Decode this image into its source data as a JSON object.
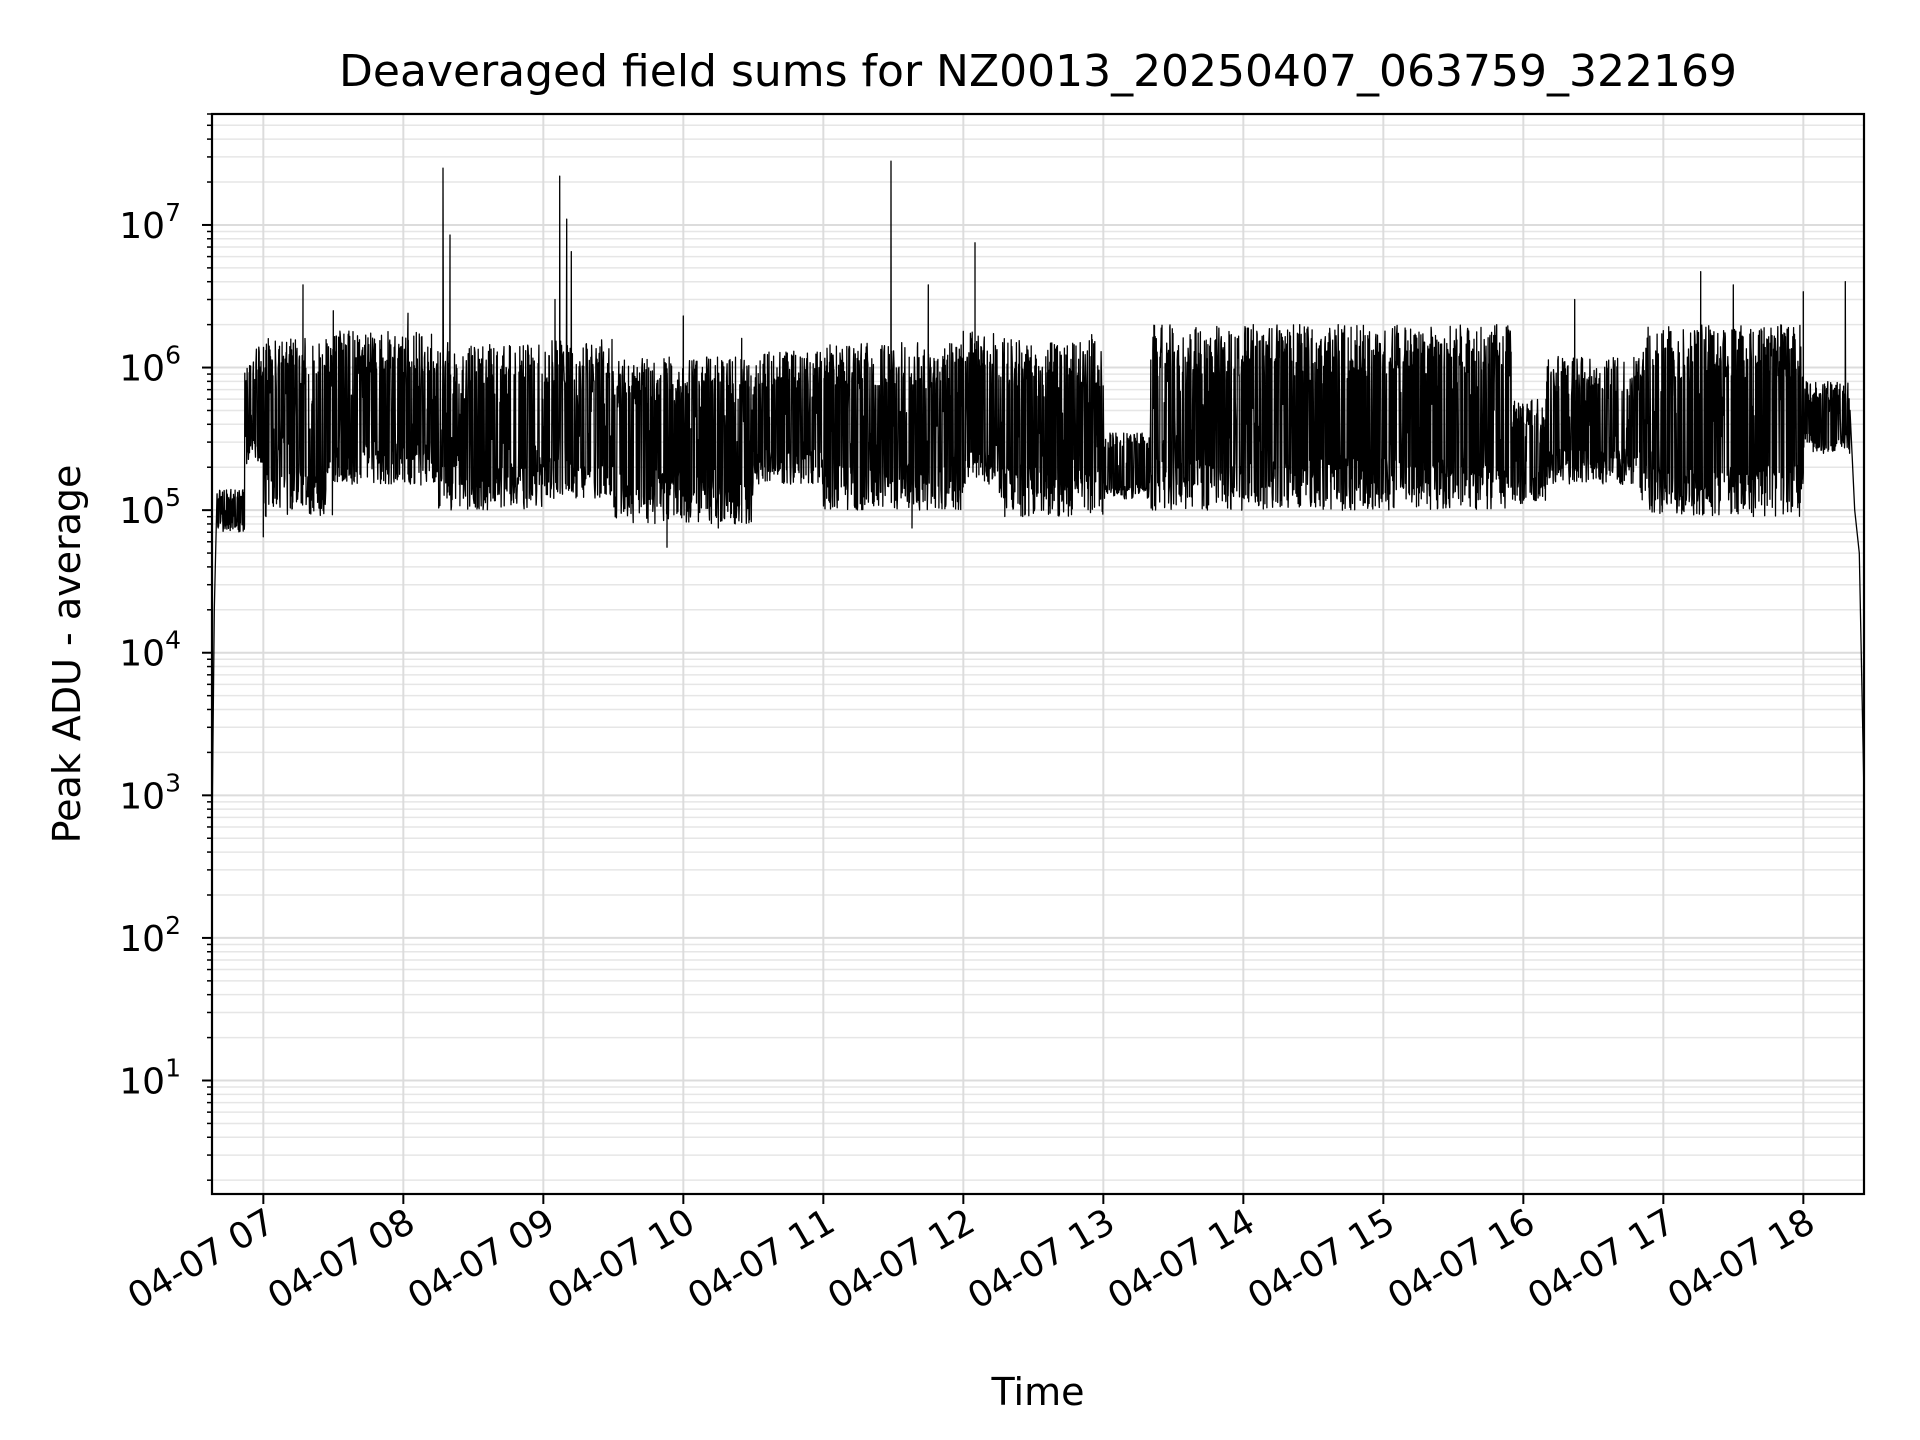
{
  "chart_data": {
    "type": "line",
    "title": "Deaveraged field sums for NZ0013_20250407_063759_322169",
    "xlabel": "Time",
    "ylabel": "Peak ADU - average",
    "yscale": "log",
    "grid": "on (major and minor)",
    "legend": "none",
    "xlim": [
      "2025-04-07 06:38",
      "2025-04-07 18:26"
    ],
    "ylim": [
      1.6,
      60000000
    ],
    "x_ticks": [
      {
        "label": "04-07 07",
        "hour": 7
      },
      {
        "label": "04-07 08",
        "hour": 8
      },
      {
        "label": "04-07 09",
        "hour": 9
      },
      {
        "label": "04-07 10",
        "hour": 10
      },
      {
        "label": "04-07 11",
        "hour": 11
      },
      {
        "label": "04-07 12",
        "hour": 12
      },
      {
        "label": "04-07 13",
        "hour": 13
      },
      {
        "label": "04-07 14",
        "hour": 14
      },
      {
        "label": "04-07 15",
        "hour": 15
      },
      {
        "label": "04-07 16",
        "hour": 16
      },
      {
        "label": "04-07 17",
        "hour": 17
      },
      {
        "label": "04-07 18",
        "hour": 18
      }
    ],
    "y_ticks": [
      {
        "base": "10",
        "exp": "1",
        "value": 10
      },
      {
        "base": "10",
        "exp": "2",
        "value": 100
      },
      {
        "base": "10",
        "exp": "3",
        "value": 1000
      },
      {
        "base": "10",
        "exp": "4",
        "value": 10000
      },
      {
        "base": "10",
        "exp": "5",
        "value": 100000
      },
      {
        "base": "10",
        "exp": "6",
        "value": 1000000
      },
      {
        "base": "10",
        "exp": "7",
        "value": 10000000
      }
    ],
    "series": [
      {
        "color": "#000000",
        "envelope_segments": [
          {
            "from": "06:40",
            "to": "06:52",
            "low": 70000,
            "high": 140000
          },
          {
            "from": "06:52",
            "to": "07:00",
            "low": 200000,
            "high": 1400000
          },
          {
            "from": "07:00",
            "to": "07:30",
            "low": 90000,
            "high": 1600000
          },
          {
            "from": "07:30",
            "to": "08:15",
            "low": 150000,
            "high": 1800000
          },
          {
            "from": "08:15",
            "to": "09:00",
            "low": 100000,
            "high": 1500000
          },
          {
            "from": "09:00",
            "to": "09:30",
            "low": 120000,
            "high": 1600000
          },
          {
            "from": "09:30",
            "to": "10:30",
            "low": 80000,
            "high": 1200000
          },
          {
            "from": "10:30",
            "to": "11:00",
            "low": 150000,
            "high": 1300000
          },
          {
            "from": "11:00",
            "to": "12:00",
            "low": 100000,
            "high": 1500000
          },
          {
            "from": "12:00",
            "to": "12:15",
            "low": 150000,
            "high": 1800000
          },
          {
            "from": "12:15",
            "to": "13:00",
            "low": 90000,
            "high": 1600000
          },
          {
            "from": "13:00",
            "to": "13:20",
            "low": 120000,
            "high": 350000
          },
          {
            "from": "13:20",
            "to": "15:55",
            "low": 100000,
            "high": 2000000
          },
          {
            "from": "15:55",
            "to": "16:10",
            "low": 110000,
            "high": 600000
          },
          {
            "from": "16:10",
            "to": "16:50",
            "low": 150000,
            "high": 1200000
          },
          {
            "from": "16:50",
            "to": "18:00",
            "low": 90000,
            "high": 2000000
          },
          {
            "from": "18:00",
            "to": "18:20",
            "low": 250000,
            "high": 800000
          }
        ],
        "edge_points": [
          {
            "time": "06:38",
            "value": 500
          },
          {
            "time": "06:39",
            "value": 20000
          },
          {
            "time": "06:41",
            "value": 120000
          },
          {
            "time": "18:22",
            "value": 100000
          },
          {
            "time": "18:24",
            "value": 50000
          },
          {
            "time": "18:26",
            "value": 1000
          }
        ],
        "spikes": [
          {
            "time": "07:17",
            "value": 3800000
          },
          {
            "time": "07:30",
            "value": 2500000
          },
          {
            "time": "08:02",
            "value": 2400000
          },
          {
            "time": "08:17",
            "value": 25000000
          },
          {
            "time": "08:20",
            "value": 8500000
          },
          {
            "time": "09:05",
            "value": 3000000
          },
          {
            "time": "09:07",
            "value": 22000000
          },
          {
            "time": "09:10",
            "value": 11000000
          },
          {
            "time": "09:12",
            "value": 6500000
          },
          {
            "time": "10:00",
            "value": 2300000
          },
          {
            "time": "10:25",
            "value": 1600000
          },
          {
            "time": "11:29",
            "value": 28000000
          },
          {
            "time": "11:45",
            "value": 3800000
          },
          {
            "time": "12:05",
            "value": 7500000
          },
          {
            "time": "12:55",
            "value": 1700000
          },
          {
            "time": "16:22",
            "value": 3000000
          },
          {
            "time": "17:16",
            "value": 4700000
          },
          {
            "time": "17:30",
            "value": 3800000
          },
          {
            "time": "17:48",
            "value": 1600000
          },
          {
            "time": "18:00",
            "value": 3400000
          },
          {
            "time": "18:18",
            "value": 4000000
          }
        ],
        "dips": [
          {
            "time": "07:00",
            "value": 65000
          },
          {
            "time": "09:53",
            "value": 55000
          },
          {
            "time": "10:15",
            "value": 75000
          },
          {
            "time": "11:38",
            "value": 75000
          }
        ]
      }
    ]
  }
}
